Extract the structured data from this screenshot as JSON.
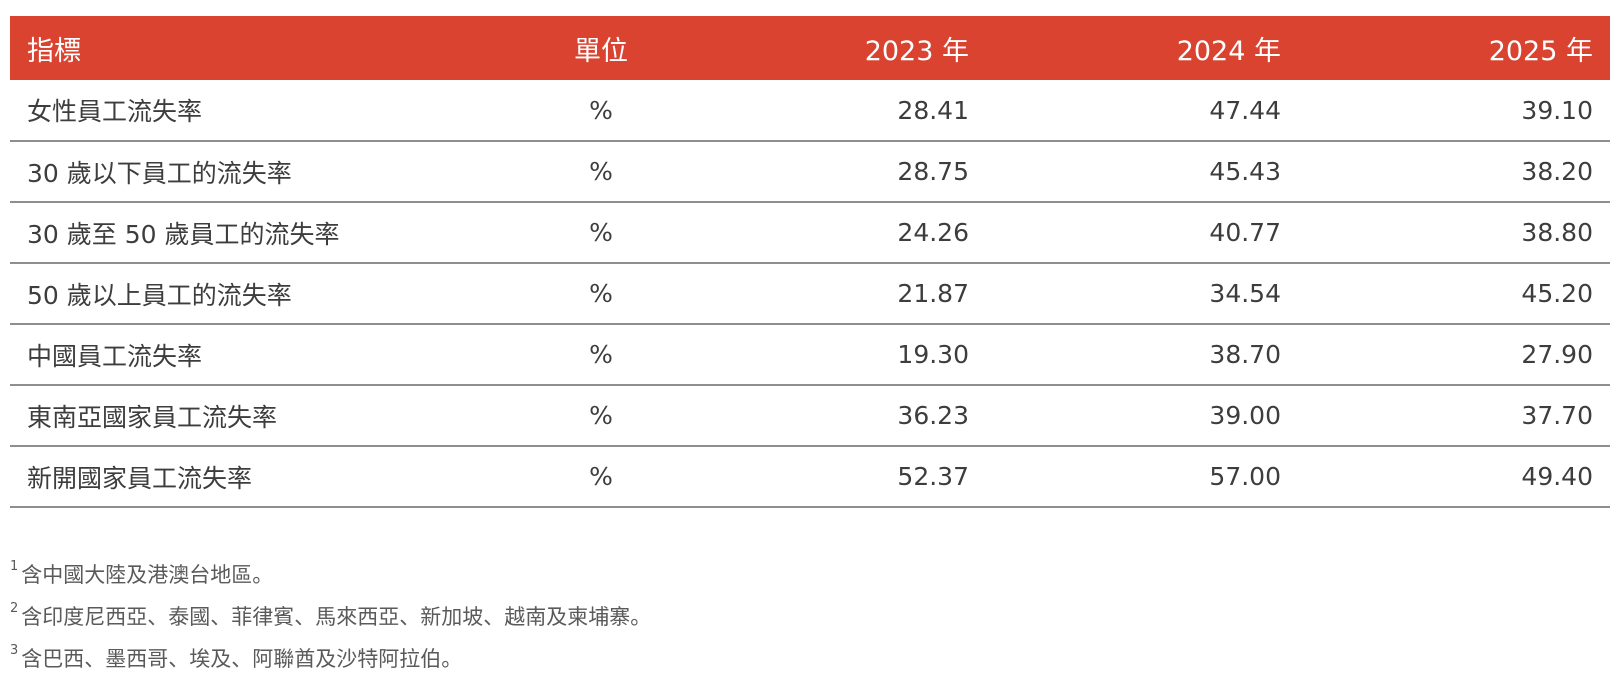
{
  "table": {
    "headers": {
      "indicator": "指標",
      "unit": "單位",
      "y2023": "2023 年",
      "y2024": "2024 年",
      "y2025": "2025 年"
    },
    "rows": [
      {
        "indicator": "女性員工流失率",
        "unit": "%",
        "y2023": "28.41",
        "y2024": "47.44",
        "y2025": "39.10"
      },
      {
        "indicator": "30 歲以下員工的流失率",
        "unit": "%",
        "y2023": "28.75",
        "y2024": "45.43",
        "y2025": "38.20"
      },
      {
        "indicator": "30 歲至 50 歲員工的流失率",
        "unit": "%",
        "y2023": "24.26",
        "y2024": "40.77",
        "y2025": "38.80"
      },
      {
        "indicator": "50 歲以上員工的流失率",
        "unit": "%",
        "y2023": "21.87",
        "y2024": "34.54",
        "y2025": "45.20"
      },
      {
        "indicator": "中國員工流失率",
        "unit": "%",
        "y2023": "19.30",
        "y2024": "38.70",
        "y2025": "27.90"
      },
      {
        "indicator": "東南亞國家員工流失率",
        "unit": "%",
        "y2023": "36.23",
        "y2024": "39.00",
        "y2025": "37.70"
      },
      {
        "indicator": "新開國家員工流失率",
        "unit": "%",
        "y2023": "52.37",
        "y2024": "57.00",
        "y2025": "49.40"
      }
    ]
  },
  "footnotes": [
    {
      "mark": "1",
      "text": "含中國大陸及港澳台地區。"
    },
    {
      "mark": "2",
      "text": "含印度尼西亞、泰國、菲律賓、馬來西亞、新加坡、越南及柬埔寨。"
    },
    {
      "mark": "3",
      "text": "含巴西、墨西哥、埃及、阿聯酋及沙特阿拉伯。"
    }
  ],
  "colors": {
    "header_bg": "#d9432f",
    "header_text": "#ffffff",
    "row_divider": "#8e8e8e"
  }
}
